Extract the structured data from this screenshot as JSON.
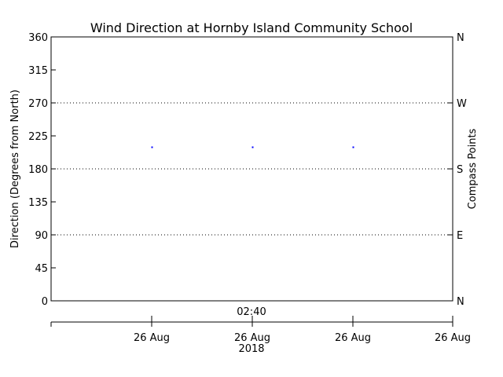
{
  "chart_data": {
    "type": "scatter",
    "title": "Wind Direction at Hornby Island Community School",
    "ylabel": "Direction (Degrees from North)",
    "ylabel_right": "Compass Points",
    "ylim": [
      0,
      360
    ],
    "yticks": [
      0,
      45,
      90,
      135,
      180,
      225,
      270,
      315,
      360
    ],
    "right_ticks": [
      {
        "value": 0,
        "label": "N"
      },
      {
        "value": 90,
        "label": "E"
      },
      {
        "value": 180,
        "label": "S"
      },
      {
        "value": 270,
        "label": "W"
      },
      {
        "value": 360,
        "label": "N"
      }
    ],
    "grid_lines": [
      90,
      180,
      270
    ],
    "time_label": "02:40",
    "x_ticks": [
      "26 Aug",
      "26 Aug",
      "26 Aug",
      "26 Aug"
    ],
    "year_label": "2018",
    "point_color": "#0000ff",
    "series": [
      {
        "x": [
          1,
          2,
          3
        ],
        "y": [
          210,
          210,
          210
        ]
      }
    ]
  }
}
